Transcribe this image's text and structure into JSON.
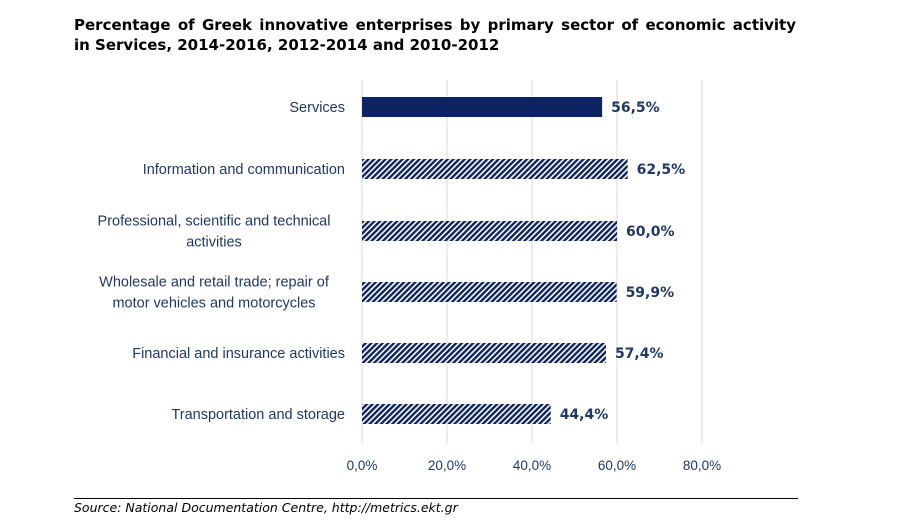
{
  "chart_data": {
    "type": "bar",
    "orientation": "horizontal",
    "title": "Percentage of Greek innovative enterprises by primary sector of economic activity in Services, 2014-2016, 2012-2014 and 2010-2012",
    "categories": [
      [
        "Services"
      ],
      [
        "Information and communication"
      ],
      [
        "Professional, scientific and technical",
        "activities"
      ],
      [
        "Wholesale and retail trade; repair of",
        "motor vehicles and motorcycles"
      ],
      [
        "Financial and insurance activities"
      ],
      [
        "Transportation and storage"
      ]
    ],
    "values": [
      56.5,
      62.5,
      60.0,
      59.9,
      57.4,
      44.4
    ],
    "value_labels": [
      "56,5%",
      "62,5%",
      "60,0%",
      "59,9%",
      "57,4%",
      "44,4%"
    ],
    "bar_styles": [
      "solid",
      "hatched",
      "hatched",
      "hatched",
      "hatched",
      "hatched"
    ],
    "xlim": [
      0,
      80
    ],
    "xticks": [
      0,
      20,
      40,
      60,
      80
    ],
    "xtick_labels": [
      "0,0%",
      "20,0%",
      "40,0%",
      "60,0%",
      "80,0%"
    ],
    "grid": "vertical",
    "colors": {
      "bar": "#0d2463",
      "label": "#1f3864",
      "grid": "#d9d9d9"
    }
  },
  "source": "Source: National Documentation Centre, http://metrics.ekt.gr"
}
